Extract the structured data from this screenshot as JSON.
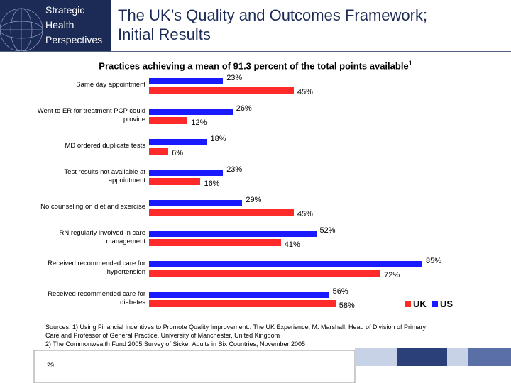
{
  "header": {
    "logo": [
      "Strategic",
      "Health",
      "Perspectives"
    ],
    "title": [
      "The UK’s Quality and Outcomes Framework;",
      "Initial Results"
    ]
  },
  "chart_data": {
    "type": "hbar",
    "title": "Practices achieving a mean of 91.3 percent of the total points available",
    "title_note": "1",
    "categories": [
      "Same day appointment",
      "Went to ER for treatment PCP could provide",
      "MD ordered duplicate tests",
      "Test results not available at appointment",
      "No counseling on diet and exercise",
      "RN regularly involved in care management",
      "Received recommended care for hypertension",
      "Received recommended care for diabetes"
    ],
    "series": [
      {
        "name": "UK",
        "color": "#ff2a2a",
        "values": [
          45,
          12,
          6,
          16,
          45,
          41,
          72,
          58
        ],
        "value_labels": [
          "45%",
          "12%",
          "6%",
          "16%",
          "45%",
          "41%",
          "72%",
          "58%"
        ]
      },
      {
        "name": "US",
        "color": "#1a1aff",
        "values": [
          23,
          26,
          18,
          23,
          29,
          52,
          85,
          56
        ],
        "value_labels": [
          "23%",
          "26%",
          "18%",
          "23%",
          "29%",
          "52%",
          "85%",
          "56%"
        ]
      }
    ],
    "xlim": [
      0,
      100
    ]
  },
  "sources": [
    "Sources: 1) Using Financial Incentives to Promote Quality Improvement:: The UK Experience, M. Marshall, Head of Division of Primary",
    "Care and Professor of General Practice, University of Manchester, United Kingdom",
    "2) The Commonwealth Fund 2005 Survey of Sicker Adults in Six Countries, November 2005"
  ],
  "page_number": "29"
}
